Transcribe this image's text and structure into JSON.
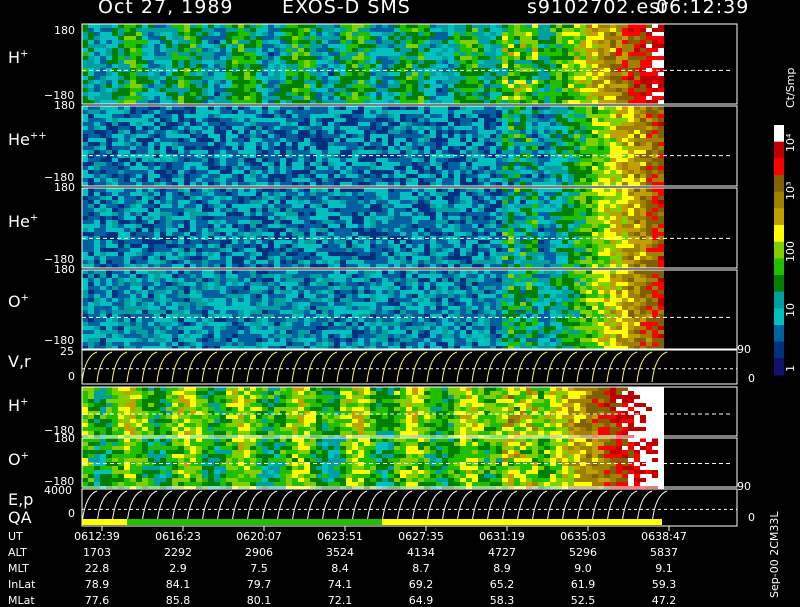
{
  "header": {
    "date": "Oct 27, 1989",
    "instrument": "EXOS-D SMS",
    "file": "s9102702.esr",
    "time": "06:12:39"
  },
  "colorbar": {
    "unit": "Ct/Smp",
    "ticks": [
      "10⁴",
      "10³",
      "100",
      "10",
      "1"
    ],
    "colors": [
      "#ffffff",
      "#c00000",
      "#ff0000",
      "#806000",
      "#a08000",
      "#c0a000",
      "#ffff00",
      "#80d000",
      "#20c000",
      "#008000",
      "#00a0a0",
      "#00c0c0",
      "#0060a0",
      "#003080",
      "#101070"
    ]
  },
  "side_label": "Sep-00 2CM33L",
  "panels": [
    {
      "species": "H",
      "charge": "+",
      "ymax": "180",
      "ymin": "−180"
    },
    {
      "species": "He",
      "charge": "++",
      "ymax": "180",
      "ymin": "−180"
    },
    {
      "species": "He",
      "charge": "+",
      "ymax": "180",
      "ymin": "−180"
    },
    {
      "species": "O",
      "charge": "+",
      "ymax": "180",
      "ymin": "−180"
    },
    {
      "species": "V,r",
      "charge": "",
      "ymax": "25",
      "ymin": "0",
      "right_top": "90",
      "right_bottom": "0"
    },
    {
      "species": "H",
      "charge": "+",
      "ymax": "180",
      "ymin": "−180"
    },
    {
      "species": "O",
      "charge": "+",
      "ymax": "180",
      "ymin": "−180"
    },
    {
      "species": "E,p",
      "charge": "",
      "ymax": "4000",
      "ymin": "0",
      "right_top": "90",
      "right_bottom": "0"
    }
  ],
  "qa_label": "QA",
  "ephemeris": {
    "labels": [
      "UT",
      "ALT",
      "MLT",
      "InLat",
      "MLat"
    ],
    "columns": [
      {
        "UT": "0612:39",
        "ALT": "1703",
        "MLT": "22.8",
        "InLat": "78.9",
        "MLat": "77.6"
      },
      {
        "UT": "0616:23",
        "ALT": "2292",
        "MLT": "2.9",
        "InLat": "84.1",
        "MLat": "85.8"
      },
      {
        "UT": "0620:07",
        "ALT": "2906",
        "MLT": "7.5",
        "InLat": "79.7",
        "MLat": "80.1"
      },
      {
        "UT": "0623:51",
        "ALT": "3524",
        "MLT": "8.4",
        "InLat": "74.1",
        "MLat": "72.1"
      },
      {
        "UT": "0627:35",
        "ALT": "4134",
        "MLT": "8.7",
        "InLat": "69.2",
        "MLat": "64.9"
      },
      {
        "UT": "0631:19",
        "ALT": "4727",
        "MLT": "8.9",
        "InLat": "65.2",
        "MLat": "58.3"
      },
      {
        "UT": "0635:03",
        "ALT": "5296",
        "MLT": "9.0",
        "InLat": "61.9",
        "MLat": "52.5"
      },
      {
        "UT": "0638:47",
        "ALT": "5837",
        "MLT": "9.1",
        "InLat": "59.3",
        "MLat": "47.2"
      }
    ]
  },
  "chart_data": {
    "type": "heatmap",
    "title": "Oct 27, 1989   EXOS-D SMS",
    "x": [
      "0612:39",
      "0616:23",
      "0620:07",
      "0623:51",
      "0627:35",
      "0631:19",
      "0635:03",
      "0638:47"
    ],
    "series": [
      {
        "name": "H+",
        "ylim": [
          -180,
          180
        ]
      },
      {
        "name": "He++",
        "ylim": [
          -180,
          180
        ]
      },
      {
        "name": "He+",
        "ylim": [
          -180,
          180
        ]
      },
      {
        "name": "O+",
        "ylim": [
          -180,
          180
        ]
      },
      {
        "name": "V,r",
        "ylim": [
          0,
          25
        ]
      },
      {
        "name": "H+",
        "ylim": [
          -180,
          180
        ]
      },
      {
        "name": "O+",
        "ylim": [
          -180,
          180
        ]
      },
      {
        "name": "E,p",
        "ylim": [
          0,
          4000
        ]
      }
    ],
    "colorbar_unit": "Ct/Smp",
    "colorbar_range": [
      1,
      10000
    ]
  }
}
